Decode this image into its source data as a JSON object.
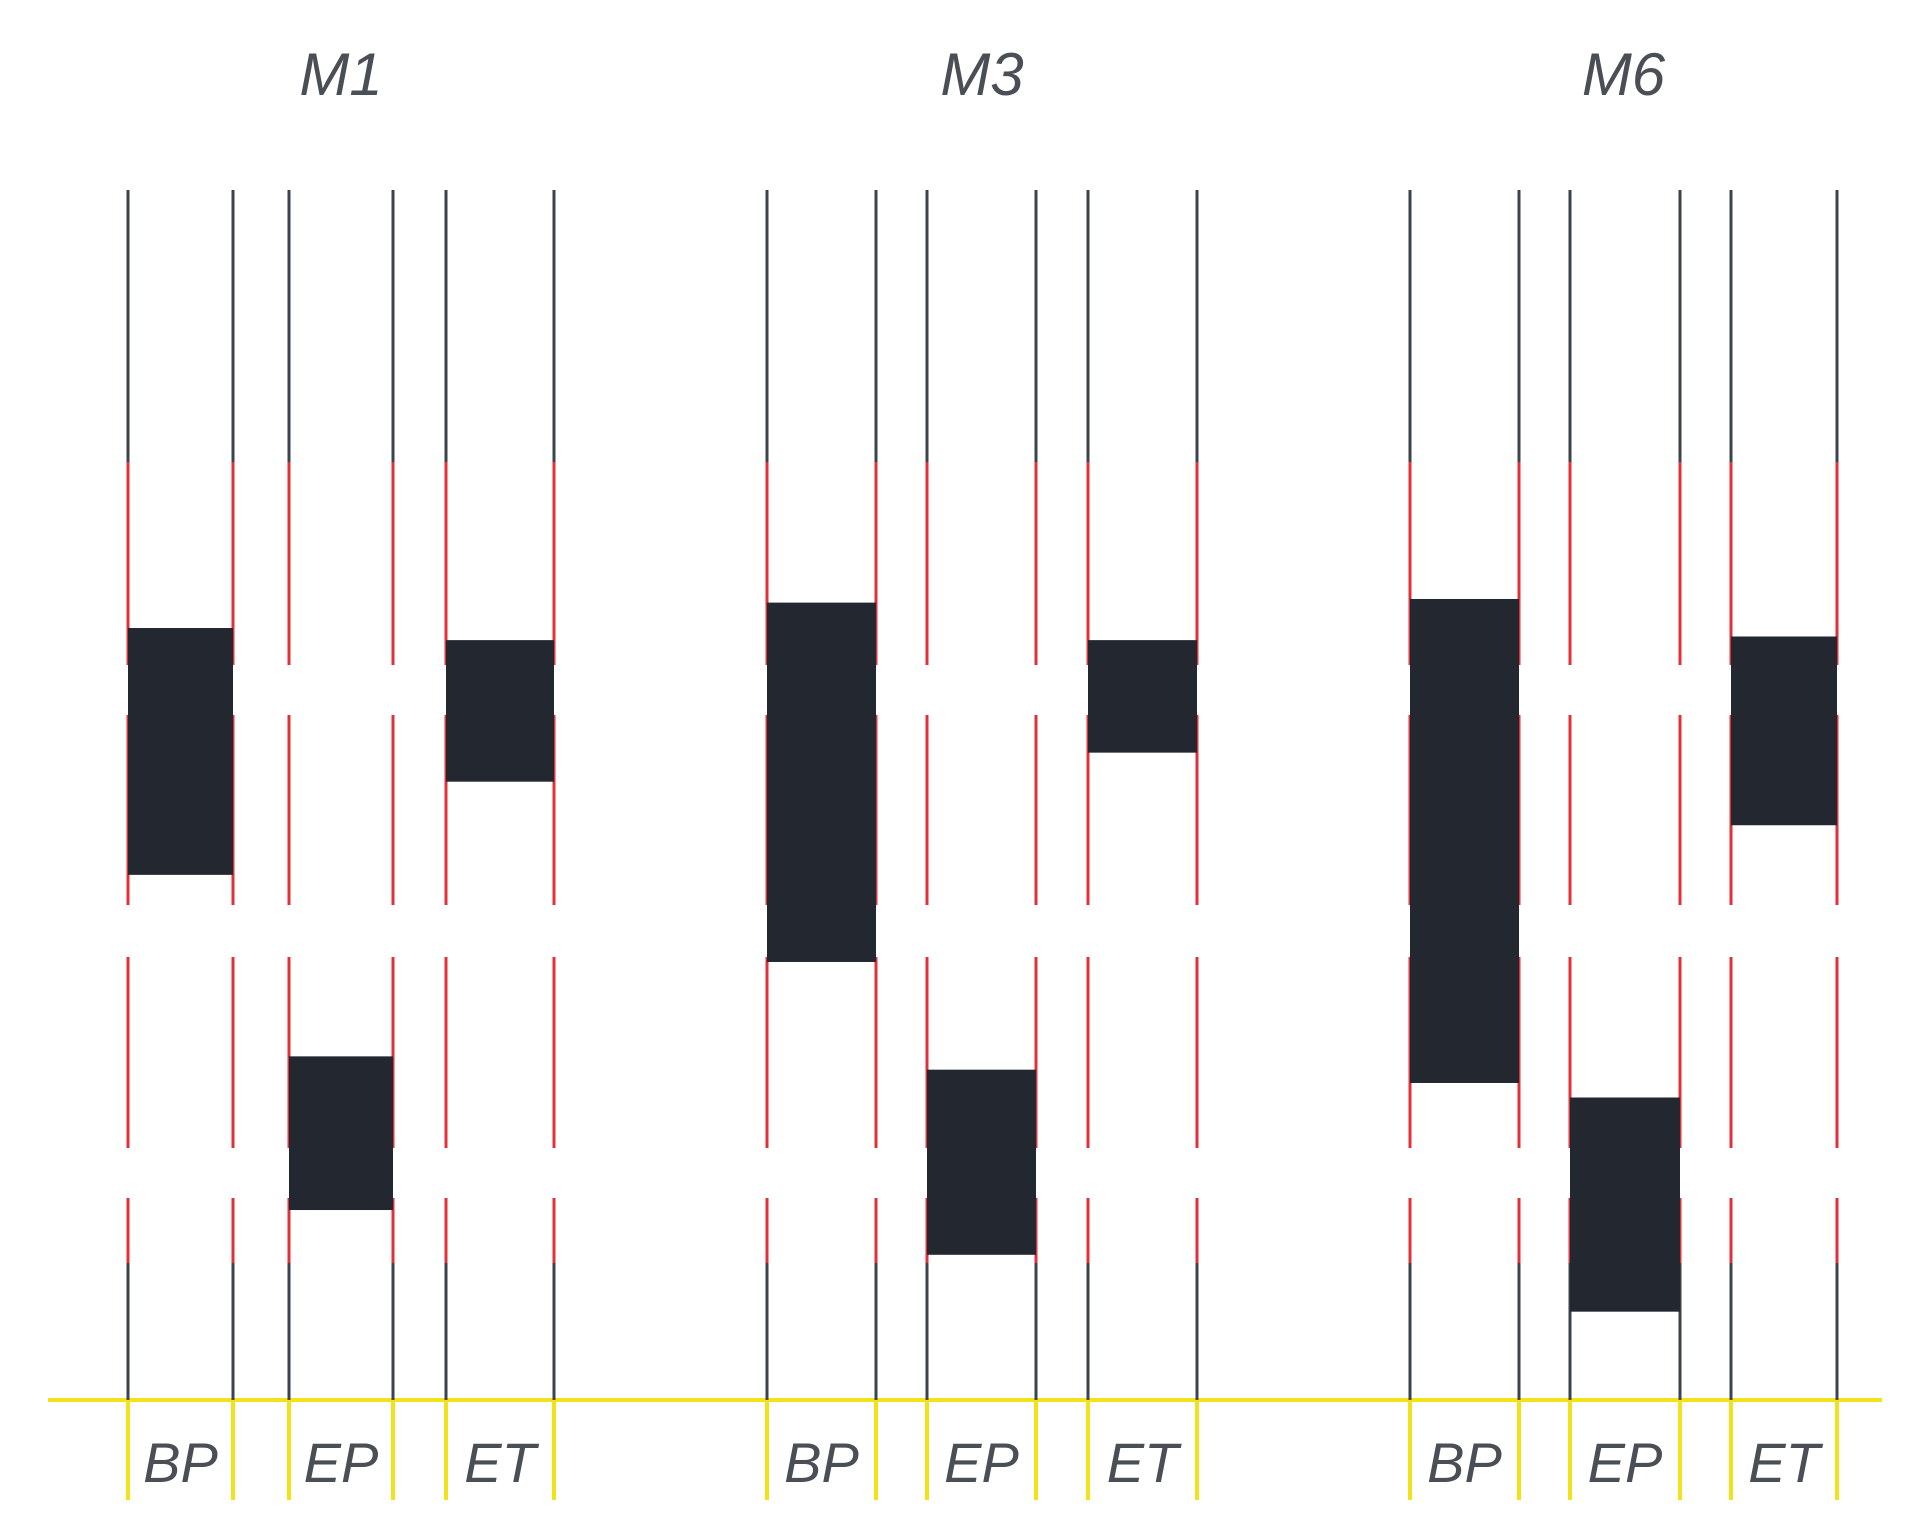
{
  "colors": {
    "background": "#ffffff",
    "line": "#3d434c",
    "accent_red": "#e0303a",
    "baseline": "#f2e21a",
    "block": "#222730",
    "text": "#4a4e55"
  },
  "groups": [
    {
      "title": "M1",
      "lanes": [
        {
          "label": "BP",
          "block": {
            "top": 0.362,
            "bottom": 0.566
          }
        },
        {
          "label": "EP",
          "block": {
            "top": 0.716,
            "bottom": 0.843
          }
        },
        {
          "label": "ET",
          "block": {
            "top": 0.372,
            "bottom": 0.489
          }
        }
      ]
    },
    {
      "title": "M3",
      "lanes": [
        {
          "label": "BP",
          "block": {
            "top": 0.341,
            "bottom": 0.638
          }
        },
        {
          "label": "EP",
          "block": {
            "top": 0.727,
            "bottom": 0.88
          }
        },
        {
          "label": "ET",
          "block": {
            "top": 0.372,
            "bottom": 0.465
          }
        }
      ]
    },
    {
      "title": "M6",
      "lanes": [
        {
          "label": "BP",
          "block": {
            "top": 0.338,
            "bottom": 0.738
          }
        },
        {
          "label": "EP",
          "block": {
            "top": 0.75,
            "bottom": 0.927
          }
        },
        {
          "label": "ET",
          "block": {
            "top": 0.369,
            "bottom": 0.525
          }
        }
      ]
    }
  ]
}
